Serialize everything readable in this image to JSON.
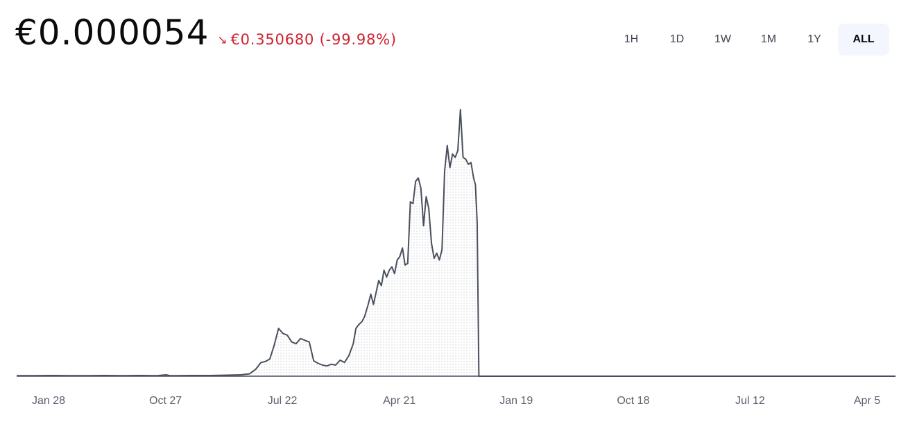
{
  "header": {
    "price": "€0.000054",
    "change_icon": "arrow-down-right-icon",
    "change": "€0.350680 (-99.98%)"
  },
  "colors": {
    "negative": "#cf202f",
    "line": "#4a4f5c",
    "fill_dots": "#c9ccd4",
    "axis": "#5b616e",
    "active_tab_bg": "#f4f6fd"
  },
  "range_tabs": [
    {
      "label": "1H",
      "active": false
    },
    {
      "label": "1D",
      "active": false
    },
    {
      "label": "1W",
      "active": false
    },
    {
      "label": "1M",
      "active": false
    },
    {
      "label": "1Y",
      "active": false
    },
    {
      "label": "ALL",
      "active": true
    }
  ],
  "chart_data": {
    "type": "area",
    "title": "",
    "xlabel": "",
    "ylabel": "",
    "x_ticks": [
      "Jan 28",
      "Oct 27",
      "Jul 22",
      "Apr 21",
      "Jan 19",
      "Oct 18",
      "Jul 12",
      "Apr 5"
    ],
    "x_range": [
      0,
      1
    ],
    "ylim": [
      0,
      1.6
    ],
    "grid": false,
    "series": [
      {
        "name": "",
        "points": [
          [
            0.0,
            0.003
          ],
          [
            0.02,
            0.003
          ],
          [
            0.04,
            0.004
          ],
          [
            0.06,
            0.003
          ],
          [
            0.08,
            0.003
          ],
          [
            0.1,
            0.004
          ],
          [
            0.12,
            0.003
          ],
          [
            0.14,
            0.004
          ],
          [
            0.16,
            0.003
          ],
          [
            0.17,
            0.008
          ],
          [
            0.175,
            0.003
          ],
          [
            0.2,
            0.004
          ],
          [
            0.22,
            0.004
          ],
          [
            0.24,
            0.006
          ],
          [
            0.255,
            0.008
          ],
          [
            0.265,
            0.014
          ],
          [
            0.272,
            0.04
          ],
          [
            0.278,
            0.08
          ],
          [
            0.283,
            0.086
          ],
          [
            0.288,
            0.1
          ],
          [
            0.293,
            0.18
          ],
          [
            0.298,
            0.28
          ],
          [
            0.303,
            0.25
          ],
          [
            0.308,
            0.24
          ],
          [
            0.313,
            0.2
          ],
          [
            0.318,
            0.19
          ],
          [
            0.323,
            0.22
          ],
          [
            0.328,
            0.21
          ],
          [
            0.333,
            0.2
          ],
          [
            0.338,
            0.09
          ],
          [
            0.343,
            0.075
          ],
          [
            0.348,
            0.065
          ],
          [
            0.353,
            0.06
          ],
          [
            0.358,
            0.07
          ],
          [
            0.363,
            0.065
          ],
          [
            0.368,
            0.094
          ],
          [
            0.373,
            0.08
          ],
          [
            0.378,
            0.12
          ],
          [
            0.383,
            0.19
          ],
          [
            0.386,
            0.28
          ],
          [
            0.389,
            0.3
          ],
          [
            0.393,
            0.32
          ],
          [
            0.396,
            0.35
          ],
          [
            0.4,
            0.42
          ],
          [
            0.403,
            0.48
          ],
          [
            0.406,
            0.42
          ],
          [
            0.409,
            0.49
          ],
          [
            0.412,
            0.56
          ],
          [
            0.415,
            0.53
          ],
          [
            0.418,
            0.62
          ],
          [
            0.421,
            0.58
          ],
          [
            0.424,
            0.62
          ],
          [
            0.427,
            0.64
          ],
          [
            0.43,
            0.6
          ],
          [
            0.433,
            0.68
          ],
          [
            0.436,
            0.7
          ],
          [
            0.439,
            0.75
          ],
          [
            0.442,
            0.65
          ],
          [
            0.445,
            0.66
          ],
          [
            0.448,
            1.02
          ],
          [
            0.451,
            1.01
          ],
          [
            0.454,
            1.14
          ],
          [
            0.457,
            1.16
          ],
          [
            0.46,
            1.1
          ],
          [
            0.463,
            0.88
          ],
          [
            0.466,
            1.05
          ],
          [
            0.469,
            0.98
          ],
          [
            0.472,
            0.78
          ],
          [
            0.475,
            0.69
          ],
          [
            0.478,
            0.72
          ],
          [
            0.481,
            0.68
          ],
          [
            0.484,
            0.74
          ],
          [
            0.487,
            1.2
          ],
          [
            0.49,
            1.35
          ],
          [
            0.493,
            1.22
          ],
          [
            0.496,
            1.3
          ],
          [
            0.499,
            1.28
          ],
          [
            0.502,
            1.32
          ],
          [
            0.505,
            1.56
          ],
          [
            0.508,
            1.28
          ],
          [
            0.511,
            1.27
          ],
          [
            0.514,
            1.24
          ],
          [
            0.517,
            1.25
          ],
          [
            0.52,
            1.16
          ],
          [
            0.522,
            1.12
          ],
          [
            0.524,
            0.9
          ],
          [
            0.526,
            0.0
          ],
          [
            0.55,
            0.0
          ],
          [
            0.6,
            0.0
          ],
          [
            0.7,
            0.0
          ],
          [
            0.8,
            0.0
          ],
          [
            0.9,
            0.0
          ],
          [
            1.0,
            0.0
          ]
        ]
      }
    ]
  }
}
